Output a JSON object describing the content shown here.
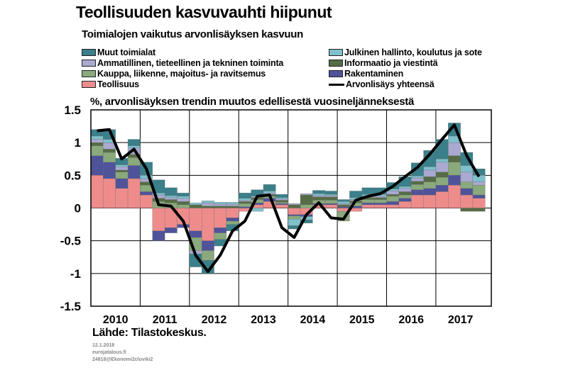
{
  "header": {
    "title": "Teollisuuden kasvuvauhti hiipunut",
    "subtitle": "Toimialojen vaikutus arvonlisäyksen kasvuun"
  },
  "legend": {
    "items": [
      {
        "label": "Muut toimialat",
        "color": "#3a7f8a",
        "kind": "box"
      },
      {
        "label": "Ammatillinen, tieteellinen ja tekninen toiminta",
        "color": "#a9a9d1",
        "kind": "box"
      },
      {
        "label": "Kauppa, liikenne, majoitus- ja ravitsemus",
        "color": "#8aa97c",
        "kind": "box"
      },
      {
        "label": "Teollisuus",
        "color": "#ee8c8c",
        "kind": "box"
      },
      {
        "label": "Julkinen hallinto, koulutus ja sote",
        "color": "#7fc0cc",
        "kind": "box"
      },
      {
        "label": "Informaatio ja viestintä",
        "color": "#566c46",
        "kind": "box"
      },
      {
        "label": "Rakentaminen",
        "color": "#4f539a",
        "kind": "box"
      },
      {
        "label": "Arvonlisäys yhteensä",
        "color": "#000000",
        "kind": "line"
      }
    ]
  },
  "axis_title": "%, arvonlisäyksen trendin muutos edellisestä vuosineljänneksestä",
  "source": "Lähde: Tilastokeskus.",
  "footer": {
    "date": "12.1.2018",
    "email": "eurojatalous.fi",
    "code": "24818@Ekonomi2cluviki2"
  },
  "chart_data": {
    "type": "bar",
    "stacked": true,
    "ylim": [
      -1.5,
      1.5
    ],
    "yticks": [
      "1.5",
      "1",
      "0.5",
      "0",
      "-0.5",
      "-1",
      "-1.5"
    ],
    "ytick_values": [
      1.5,
      1,
      0.5,
      0,
      -0.5,
      -1,
      -1.5
    ],
    "year_labels": [
      "2010",
      "2011",
      "2012",
      "2013",
      "2014",
      "2015",
      "2016",
      "2017"
    ],
    "quarters_per_year": 4,
    "grid": true,
    "series": [
      {
        "name": "Teollisuus",
        "color": "#ee8c8c",
        "values": [
          0.5,
          0.45,
          0.3,
          0.45,
          0.2,
          -0.35,
          -0.3,
          -0.25,
          -0.35,
          -0.5,
          -0.3,
          -0.15,
          -0.05,
          0.05,
          0.1,
          0.05,
          -0.1,
          -0.1,
          0.05,
          0.05,
          -0.05,
          -0.05,
          0.05,
          0.05,
          0.05,
          0.1,
          0.2,
          0.2,
          0.25,
          0.35,
          0.2,
          0.15
        ]
      },
      {
        "name": "Rakentaminen",
        "color": "#4f539a",
        "values": [
          0.3,
          0.25,
          0.15,
          0.2,
          0.05,
          -0.15,
          -0.08,
          -0.05,
          -0.1,
          -0.15,
          -0.08,
          -0.05,
          0.02,
          0.03,
          0.05,
          0.02,
          -0.02,
          -0.03,
          0.02,
          0.02,
          0.02,
          0.03,
          0.03,
          0.03,
          0.05,
          0.05,
          0.08,
          0.1,
          0.1,
          0.15,
          0.1,
          0.05
        ]
      },
      {
        "name": "Kauppa, liikenne, majoitus- ja ravitsemus",
        "color": "#8aa97c",
        "values": [
          0.15,
          0.15,
          0.1,
          0.12,
          0.1,
          0.1,
          0.08,
          0.05,
          -0.2,
          -0.15,
          -0.1,
          -0.05,
          0.05,
          0.05,
          0.03,
          0.02,
          -0.05,
          0.05,
          0.05,
          0.05,
          -0.15,
          0.05,
          0.05,
          0.05,
          0.08,
          0.05,
          0.08,
          0.1,
          0.12,
          0.2,
          0.1,
          0.15
        ]
      },
      {
        "name": "Informaatio ja viestintä",
        "color": "#566c46",
        "values": [
          0.05,
          0.05,
          0.03,
          0.05,
          0.05,
          0.05,
          0.05,
          0.05,
          0.05,
          0.03,
          0.03,
          0.03,
          0.03,
          0.03,
          0.03,
          0.03,
          0.05,
          0.15,
          0.05,
          0.05,
          0.03,
          0.03,
          0.03,
          0.03,
          0.03,
          0.05,
          0.05,
          0.08,
          0.08,
          0.1,
          -0.05,
          -0.05
        ]
      },
      {
        "name": "Ammatillinen, tieteellinen ja tekninen toiminta",
        "color": "#a9a9d1",
        "values": [
          0.05,
          0.1,
          0.05,
          0.1,
          0.05,
          0.05,
          0.03,
          0.05,
          -0.05,
          0.05,
          0.03,
          0.03,
          0.02,
          0.02,
          0.02,
          0.02,
          0.02,
          0.02,
          0.02,
          0.02,
          0.02,
          0.02,
          0.02,
          0.02,
          0.05,
          0.05,
          0.05,
          0.1,
          0.15,
          0.2,
          0.15,
          0.05
        ]
      },
      {
        "name": "Julkinen hallinto, koulutus ja sote",
        "color": "#7fc0cc",
        "values": [
          0.05,
          0.05,
          0.03,
          0.03,
          0.05,
          0.03,
          0.03,
          0.03,
          0.03,
          0.03,
          0.03,
          0.03,
          0.03,
          -0.05,
          0.03,
          0.02,
          -0.1,
          -0.05,
          0.03,
          0.02,
          0.03,
          0.03,
          0.03,
          0.03,
          0.03,
          0.03,
          0.03,
          0.05,
          0.05,
          0.1,
          0.1,
          0.1
        ]
      },
      {
        "name": "Muut toimialat",
        "color": "#3a7f8a",
        "values": [
          0.1,
          0.15,
          0.1,
          0.1,
          0.2,
          0.2,
          0.12,
          0.05,
          -0.2,
          -0.2,
          -0.1,
          -0.1,
          0.08,
          0.1,
          0.1,
          0.05,
          -0.05,
          -0.05,
          0.05,
          0.05,
          0.03,
          0.1,
          0.1,
          0.1,
          0.1,
          0.15,
          0.2,
          0.25,
          0.3,
          0.2,
          0.2,
          0.1
        ]
      }
    ],
    "total_series": {
      "name": "Arvonlisäys yhteensä",
      "color": "#000000",
      "values": [
        1.18,
        1.2,
        0.75,
        0.9,
        0.6,
        0.05,
        0.03,
        -0.2,
        -0.72,
        -0.97,
        -0.72,
        -0.35,
        -0.2,
        0.18,
        0.2,
        -0.3,
        -0.45,
        -0.1,
        0.08,
        -0.15,
        -0.17,
        0.12,
        0.18,
        0.22,
        0.33,
        0.48,
        0.62,
        0.82,
        1.05,
        1.27,
        0.8,
        0.48
      ]
    }
  }
}
